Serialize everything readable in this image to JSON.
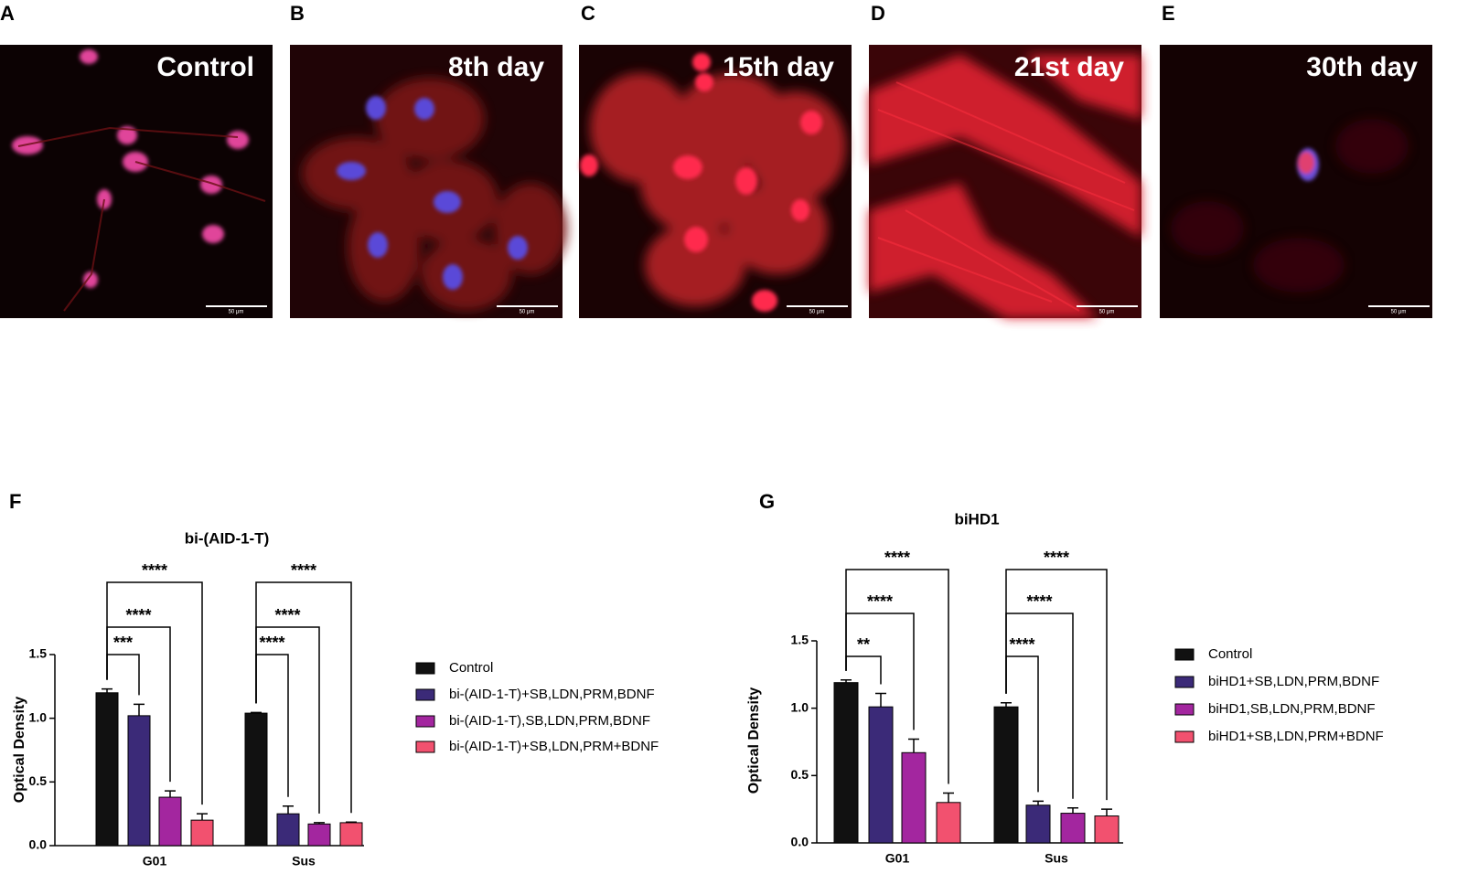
{
  "panels": [
    {
      "letter": "A",
      "title": "Control",
      "scale": "50 μm"
    },
    {
      "letter": "B",
      "title": "8th day",
      "scale": "50 μm"
    },
    {
      "letter": "C",
      "title": "15th day",
      "scale": "50 μm"
    },
    {
      "letter": "D",
      "title": "21st day",
      "scale": "50 μm"
    },
    {
      "letter": "E",
      "title": "30th day",
      "scale": "50 μm"
    }
  ],
  "chart_data": [
    {
      "type": "bar",
      "label": "F",
      "title": "bi-(AID-1-T)",
      "y_label": "Optical Density",
      "categories": [
        "G01",
        "Sus"
      ],
      "ylim": [
        0,
        1.5
      ],
      "yticks": [
        {
          "value": 0,
          "label": "0.0"
        },
        {
          "value": 0.5,
          "label": "0.5"
        },
        {
          "value": 1,
          "label": "1.0"
        },
        {
          "value": 1.5,
          "label": "1.5"
        }
      ],
      "series": [
        {
          "name": "Control",
          "color": "#111111",
          "values": [
            1.2,
            1.04
          ],
          "error": [
            0.03,
            0.005
          ]
        },
        {
          "name": "bi-(AID-1-T)+SB,LDN,PRM,BDNF",
          "color": "#3b2a78",
          "values": [
            1.02,
            0.25
          ],
          "error": [
            0.09,
            0.06
          ]
        },
        {
          "name": "bi-(AID-1-T),SB,LDN,PRM,BDNF",
          "color": "#a3269f",
          "values": [
            0.38,
            0.17
          ],
          "error": [
            0.05,
            0.01
          ]
        },
        {
          "name": "bi-(AID-1-T)+SB,LDN,PRM+BDNF",
          "color": "#f2516f",
          "values": [
            0.2,
            0.18
          ],
          "error": [
            0.05,
            0.005
          ]
        }
      ],
      "significance": [
        [
          "***",
          "****",
          "****"
        ],
        [
          "****",
          "****",
          "****"
        ]
      ]
    },
    {
      "type": "bar",
      "label": "G",
      "title": "biHD1",
      "y_label": "Optical Density",
      "categories": [
        "G01",
        "Sus"
      ],
      "ylim": [
        0,
        1.5
      ],
      "yticks": [
        {
          "value": 0,
          "label": "0.0"
        },
        {
          "value": 0.5,
          "label": "0.5"
        },
        {
          "value": 1,
          "label": "1.0"
        },
        {
          "value": 1.5,
          "label": "1.5"
        }
      ],
      "series": [
        {
          "name": "Control",
          "color": "#111111",
          "values": [
            1.19,
            1.01
          ],
          "error": [
            0.02,
            0.03
          ]
        },
        {
          "name": "biHD1+SB,LDN,PRM,BDNF",
          "color": "#3b2a78",
          "values": [
            1.01,
            0.28
          ],
          "error": [
            0.1,
            0.03
          ]
        },
        {
          "name": "biHD1,SB,LDN,PRM,BDNF",
          "color": "#a3269f",
          "values": [
            0.67,
            0.22
          ],
          "error": [
            0.1,
            0.04
          ]
        },
        {
          "name": "biHD1+SB,LDN,PRM+BDNF",
          "color": "#f2516f",
          "values": [
            0.3,
            0.2
          ],
          "error": [
            0.07,
            0.05
          ]
        }
      ],
      "significance": [
        [
          "**",
          "****",
          "****"
        ],
        [
          "****",
          "****",
          "****"
        ]
      ]
    }
  ]
}
